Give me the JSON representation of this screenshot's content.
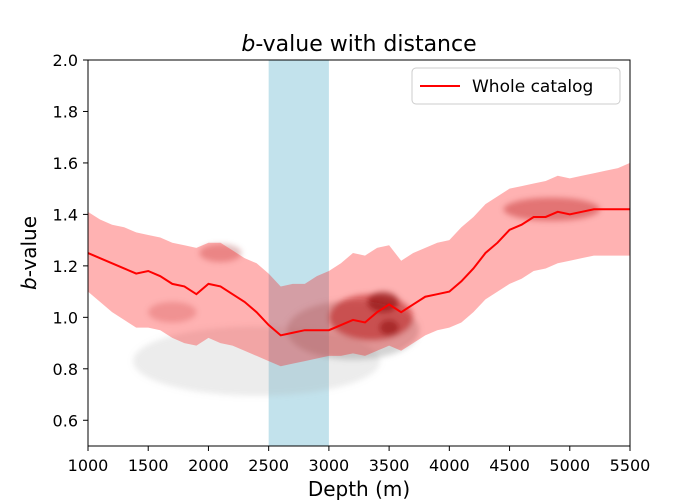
{
  "chart_data": {
    "type": "line",
    "title_italic": "b",
    "title_rest": "-value with distance",
    "xlabel": "Depth (m)",
    "ylabel_italic": "b",
    "ylabel_rest": "-value",
    "xlim": [
      1000,
      5500
    ],
    "ylim": [
      0.5,
      2.0
    ],
    "xticks": [
      1000,
      1500,
      2000,
      2500,
      3000,
      3500,
      4000,
      4500,
      5000,
      5500
    ],
    "yticks": [
      0.6,
      0.8,
      1.0,
      1.2,
      1.4,
      1.6,
      1.8,
      2.0
    ],
    "grid": false,
    "legend": {
      "position": "top-right",
      "entries": [
        "Whole catalog"
      ]
    },
    "highlight_band": {
      "x0": 2500,
      "x1": 3000,
      "color": "#add8e6"
    },
    "series": [
      {
        "name": "Whole catalog",
        "color": "#ff0000",
        "x": [
          1000,
          1100,
          1200,
          1300,
          1400,
          1500,
          1600,
          1700,
          1800,
          1900,
          2000,
          2100,
          2200,
          2300,
          2400,
          2500,
          2600,
          2700,
          2800,
          2900,
          3000,
          3100,
          3200,
          3300,
          3400,
          3500,
          3600,
          3700,
          3800,
          3900,
          4000,
          4100,
          4200,
          4300,
          4400,
          4500,
          4600,
          4700,
          4800,
          4900,
          5000,
          5100,
          5200,
          5300,
          5400,
          5500
        ],
        "y": [
          1.25,
          1.23,
          1.21,
          1.19,
          1.17,
          1.18,
          1.16,
          1.13,
          1.12,
          1.09,
          1.13,
          1.12,
          1.09,
          1.06,
          1.02,
          0.97,
          0.93,
          0.94,
          0.95,
          0.95,
          0.95,
          0.97,
          0.99,
          0.98,
          1.02,
          1.05,
          1.02,
          1.05,
          1.08,
          1.09,
          1.1,
          1.14,
          1.19,
          1.25,
          1.29,
          1.34,
          1.36,
          1.39,
          1.39,
          1.41,
          1.4,
          1.41,
          1.42,
          1.42,
          1.42,
          1.42
        ],
        "lower": [
          1.1,
          1.06,
          1.02,
          0.99,
          0.96,
          0.96,
          0.95,
          0.92,
          0.9,
          0.89,
          0.92,
          0.9,
          0.89,
          0.87,
          0.85,
          0.83,
          0.81,
          0.82,
          0.83,
          0.84,
          0.85,
          0.85,
          0.86,
          0.85,
          0.87,
          0.89,
          0.87,
          0.9,
          0.93,
          0.95,
          0.96,
          0.98,
          1.02,
          1.07,
          1.1,
          1.13,
          1.15,
          1.18,
          1.19,
          1.21,
          1.22,
          1.23,
          1.24,
          1.24,
          1.24,
          1.24
        ],
        "upper": [
          1.41,
          1.38,
          1.36,
          1.35,
          1.33,
          1.32,
          1.31,
          1.29,
          1.28,
          1.27,
          1.29,
          1.29,
          1.26,
          1.23,
          1.21,
          1.17,
          1.12,
          1.13,
          1.13,
          1.16,
          1.18,
          1.21,
          1.25,
          1.24,
          1.27,
          1.28,
          1.22,
          1.25,
          1.27,
          1.29,
          1.3,
          1.35,
          1.39,
          1.44,
          1.47,
          1.5,
          1.51,
          1.52,
          1.53,
          1.55,
          1.54,
          1.55,
          1.56,
          1.57,
          1.58,
          1.6
        ]
      }
    ],
    "density": [
      {
        "x": 2400,
        "y": 0.83,
        "sx": 2050,
        "sy": 0.27,
        "level": 0.22,
        "color": "#a9a9a9"
      },
      {
        "x": 3200,
        "y": 0.95,
        "sx": 1100,
        "sy": 0.23,
        "level": 0.35,
        "color": "#808080"
      },
      {
        "x": 3350,
        "y": 1.0,
        "sx": 700,
        "sy": 0.18,
        "level": 0.45,
        "color": "#8b0000"
      },
      {
        "x": 3450,
        "y": 1.06,
        "sx": 260,
        "sy": 0.08,
        "level": 0.55,
        "color": "#4b0000"
      },
      {
        "x": 3500,
        "y": 0.96,
        "sx": 160,
        "sy": 0.06,
        "level": 0.45,
        "color": "#4b0000"
      },
      {
        "x": 4850,
        "y": 1.42,
        "sx": 800,
        "sy": 0.09,
        "level": 0.35,
        "color": "#8b0000"
      },
      {
        "x": 2100,
        "y": 1.25,
        "sx": 350,
        "sy": 0.07,
        "level": 0.25,
        "color": "#8b0000"
      },
      {
        "x": 1700,
        "y": 1.02,
        "sx": 400,
        "sy": 0.08,
        "level": 0.18,
        "color": "#8b0000"
      }
    ]
  }
}
